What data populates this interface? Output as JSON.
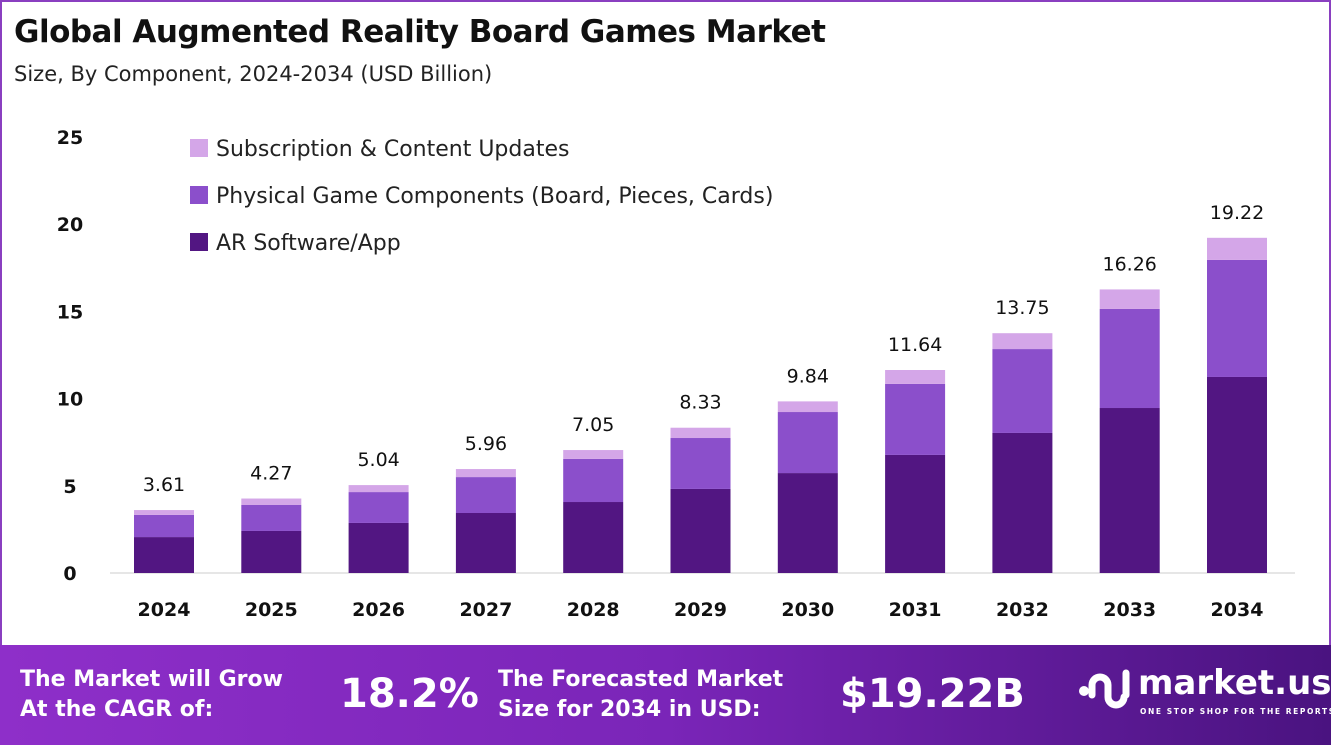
{
  "header": {
    "title": "Global Augmented Reality Board Games Market",
    "subtitle": "Size, By Component, 2024-2034 (USD Billion)"
  },
  "chart_data": {
    "type": "bar",
    "stacked": true,
    "categories": [
      "2024",
      "2025",
      "2026",
      "2027",
      "2028",
      "2029",
      "2030",
      "2031",
      "2032",
      "2033",
      "2034"
    ],
    "series": [
      {
        "name": "AR Software/App",
        "color": "#521682",
        "values": [
          2.06,
          2.41,
          2.87,
          3.44,
          4.07,
          4.82,
          5.73,
          6.77,
          8.03,
          9.46,
          11.24
        ]
      },
      {
        "name": "Physical Game Components (Board, Pieces, Cards)",
        "color": "#8B4FCB",
        "values": [
          1.27,
          1.49,
          1.77,
          2.06,
          2.47,
          2.92,
          3.5,
          4.07,
          4.81,
          5.68,
          6.71
        ]
      },
      {
        "name": "Subscription & Content Updates",
        "color": "#D4A6E8",
        "values": [
          0.28,
          0.37,
          0.4,
          0.46,
          0.51,
          0.59,
          0.61,
          0.8,
          0.91,
          1.12,
          1.27
        ]
      }
    ],
    "totals": [
      "3.61",
      "4.27",
      "5.04",
      "5.96",
      "7.05",
      "8.33",
      "9.84",
      "11.64",
      "13.75",
      "16.26",
      "19.22"
    ],
    "yticks": [
      "0",
      "5",
      "10",
      "15",
      "20",
      "25"
    ],
    "ylim": [
      0,
      25
    ],
    "grid": false,
    "legend": "top-left"
  },
  "footer": {
    "cagr_label_1": "The Market will Grow",
    "cagr_label_2": "At the CAGR of:",
    "cagr_value": "18.2%",
    "forecast_label_1": "The Forecasted Market",
    "forecast_label_2": "Size for 2034 in USD:",
    "forecast_value": "$19.22B",
    "brand": "market.us",
    "tagline": "ONE STOP SHOP FOR THE REPORTS"
  }
}
